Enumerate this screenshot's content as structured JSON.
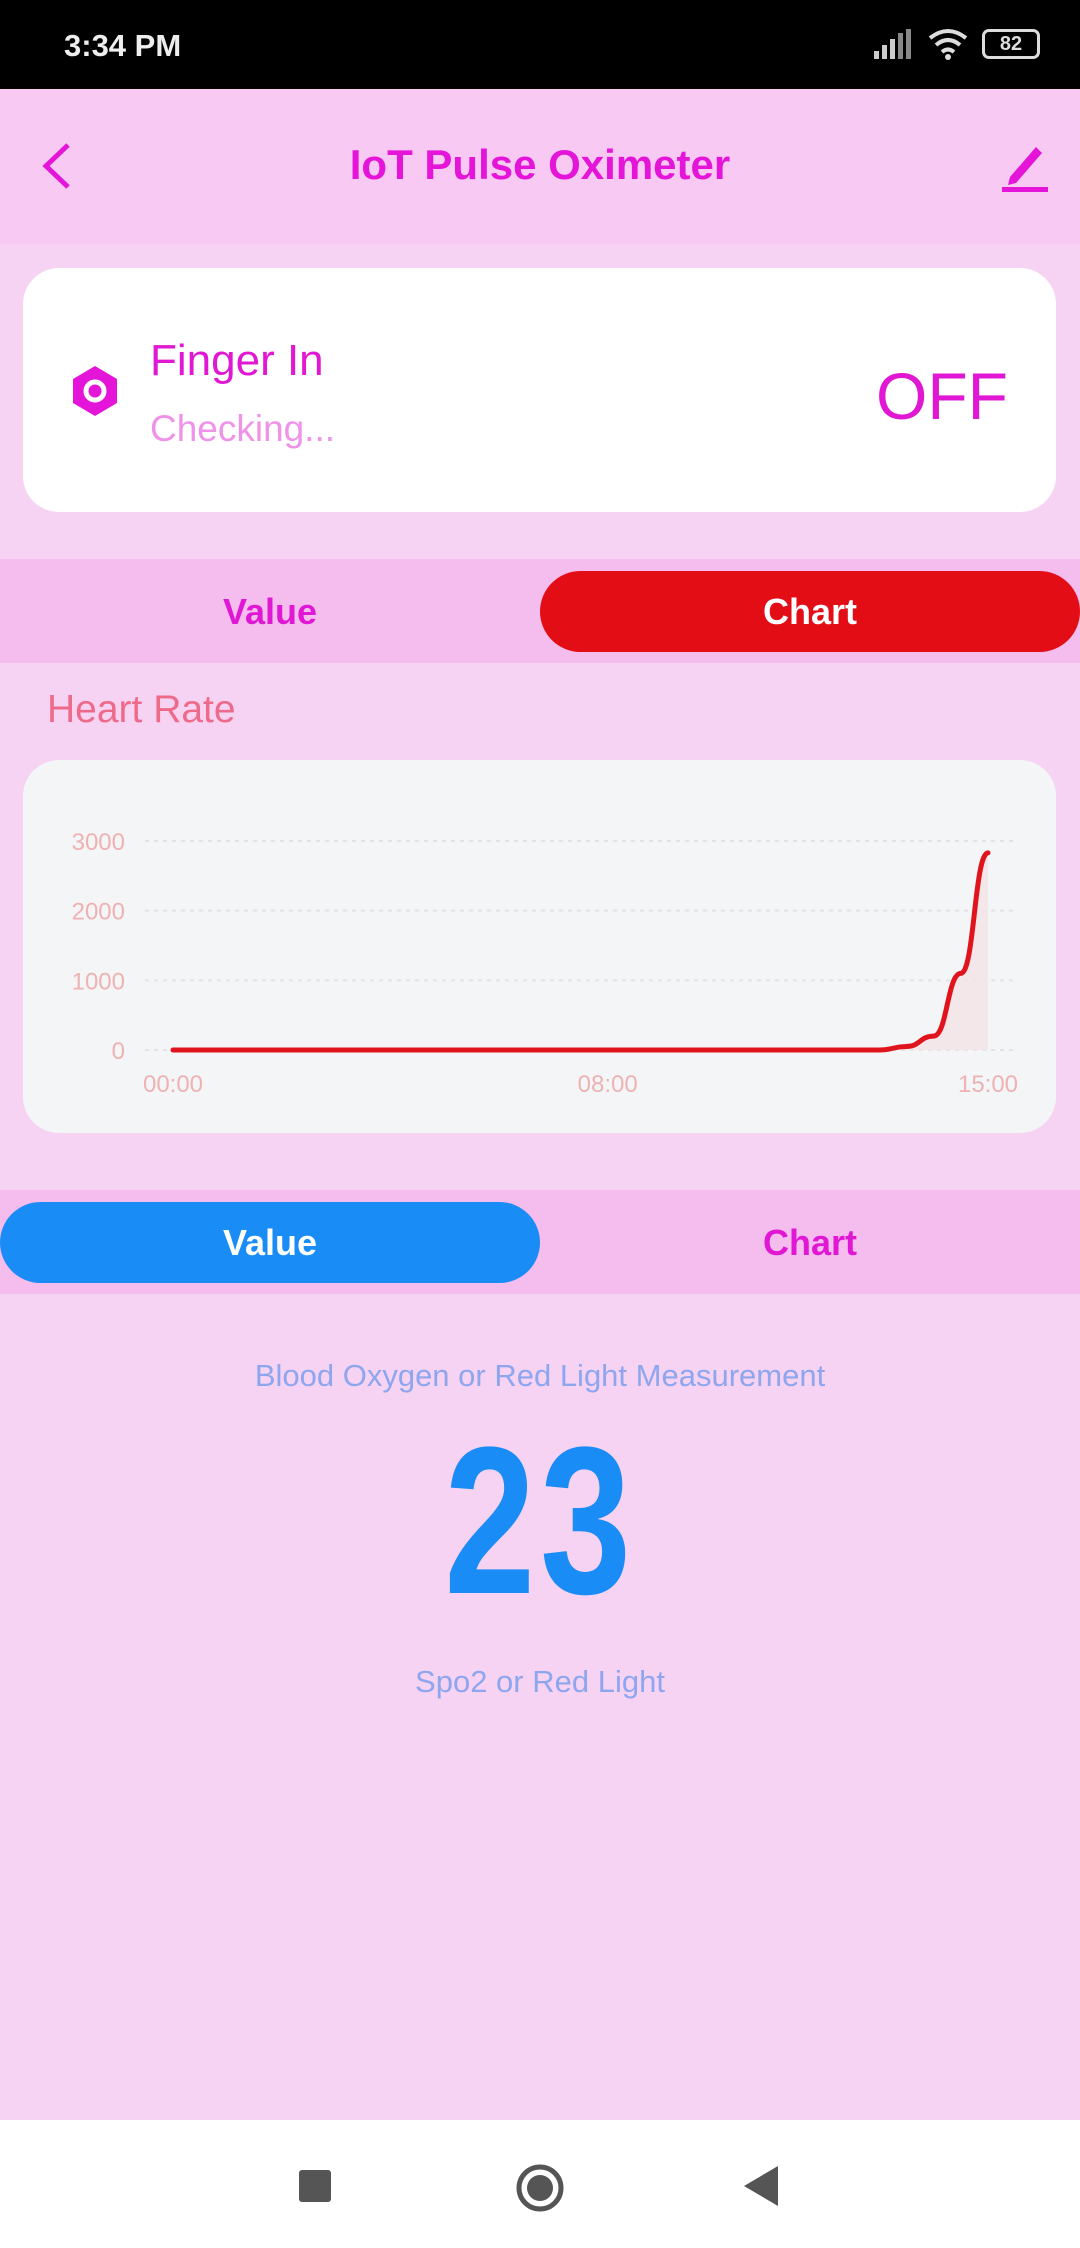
{
  "status_bar": {
    "time": "3:34 PM",
    "battery": "82",
    "icons": [
      "signal-icon",
      "wifi-icon",
      "battery-icon"
    ]
  },
  "header": {
    "title": "IoT Pulse Oximeter",
    "back_icon": "chevron-left-icon",
    "edit_icon": "pencil-icon"
  },
  "finger_card": {
    "icon": "hexagon-nut-icon",
    "title": "Finger In",
    "subtitle": "Checking...",
    "state": "OFF"
  },
  "tabs1": {
    "value": "Value",
    "chart": "Chart",
    "active": "chart",
    "active_color": "#e30d16"
  },
  "heart_rate": {
    "label": "Heart Rate"
  },
  "chart_data": {
    "type": "area",
    "title": "",
    "xlabel": "",
    "ylabel": "",
    "x_ticks": [
      "00:00",
      "08:00",
      "15:00"
    ],
    "y_ticks": [
      0,
      1000,
      2000,
      3000
    ],
    "ylim": [
      0,
      3000
    ],
    "xlim_hours": [
      0,
      15
    ],
    "grid": true,
    "line_color": "#e0141c",
    "x": [
      0,
      2,
      4,
      6,
      8,
      10,
      12,
      13,
      13.5,
      14,
      14.5,
      15
    ],
    "y": [
      0,
      0,
      0,
      0,
      0,
      0,
      0,
      0,
      50,
      200,
      1100,
      2830
    ]
  },
  "tabs2": {
    "value": "Value",
    "chart": "Chart",
    "active": "value",
    "active_color": "#1a8cf5"
  },
  "spo2": {
    "label": "Blood Oxygen or Red Light Measurement",
    "value": "23",
    "unit": "Spo2 or Red Light"
  },
  "nav": {
    "icons": [
      "recents-square-icon",
      "home-circle-icon",
      "back-triangle-icon"
    ]
  }
}
